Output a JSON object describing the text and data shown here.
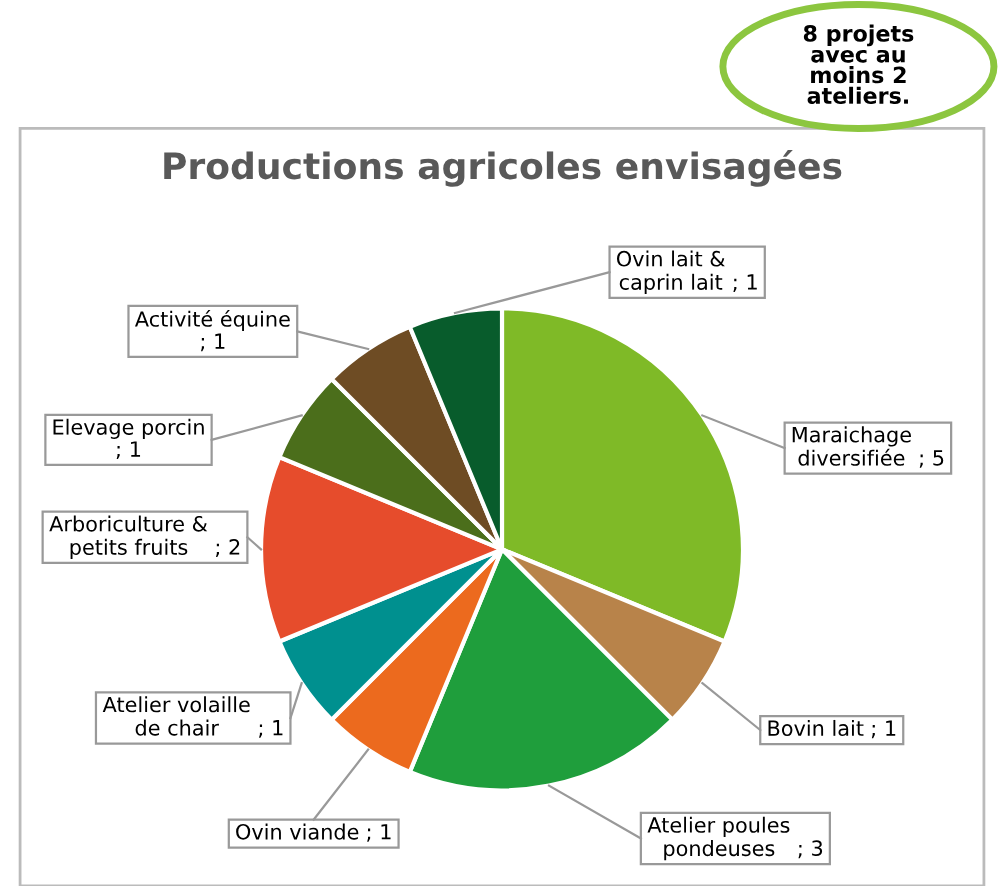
{
  "chart_data": {
    "type": "pie",
    "title": "Productions agricoles envisagées",
    "categories": [
      "Maraichage diversifiée",
      "Bovin lait",
      "Atelier poules pondeuses",
      "Ovin viande",
      "Atelier volaille de chair",
      "Arboriculture & petits fruits",
      "Elevage porcin",
      "Activité équine",
      "Ovin lait & caprin lait"
    ],
    "values": [
      5,
      1,
      3,
      1,
      1,
      2,
      1,
      1,
      1
    ],
    "colors": [
      "#7fba27",
      "#b8834a",
      "#1f9e3c",
      "#ec6a1e",
      "#00908f",
      "#e64c2c",
      "#4b6e1b",
      "#6e4c24",
      "#085c2c"
    ],
    "value_labels": [
      "; 5",
      "; 1",
      "; 3",
      "; 1",
      "; 1",
      "; 2",
      "; 1",
      "; 1",
      "; 1"
    ],
    "annotations": [
      "8 projets\navec au\nmoins 2\nateliers."
    ]
  }
}
